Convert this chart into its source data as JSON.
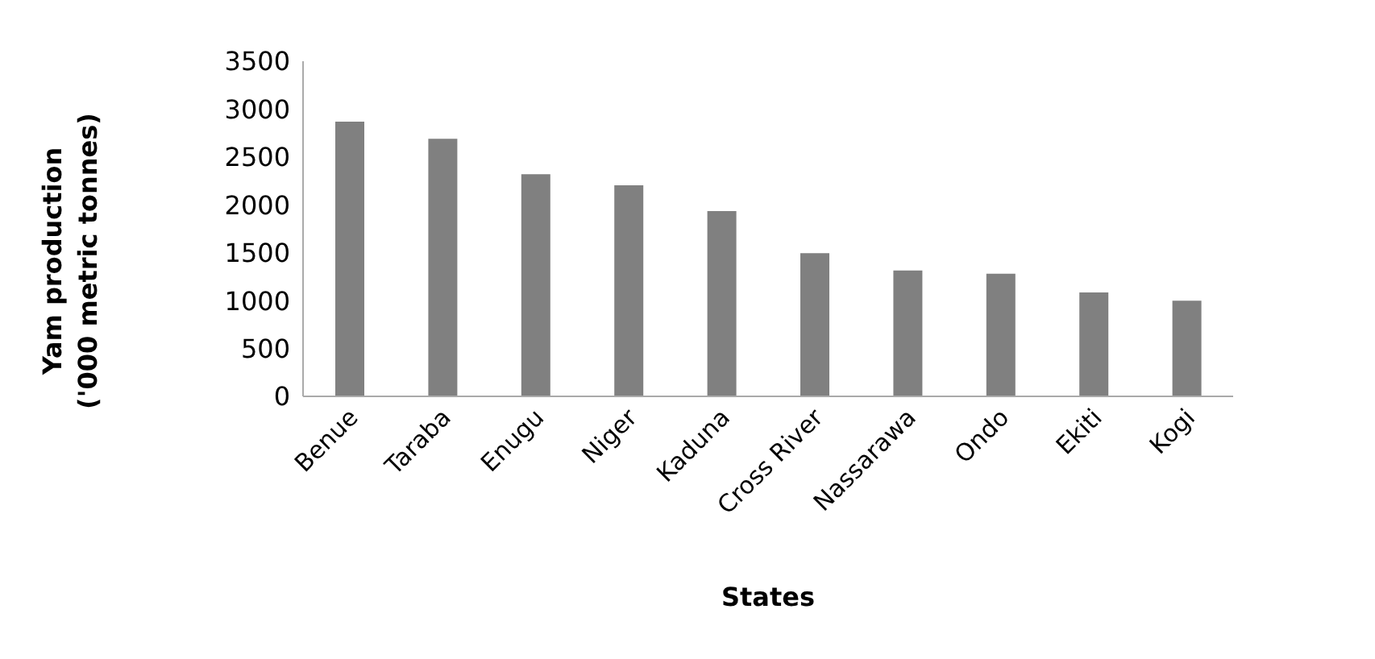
{
  "chart_data": {
    "type": "bar",
    "xlabel": "States",
    "ylabel": "Yam production ('000 metric tonnes)",
    "categories": [
      "Benue",
      "Taraba",
      "Enugu",
      "Niger",
      "Kaduna",
      "Cross River",
      "Nassarawa",
      "Ondo",
      "Ekiti",
      "Kogi"
    ],
    "values": [
      2870,
      2690,
      2320,
      2205,
      1935,
      1495,
      1315,
      1280,
      1085,
      1000
    ],
    "color": "#808080",
    "ylim": [
      0,
      3500
    ],
    "yticks": [
      0,
      500,
      1000,
      1500,
      2000,
      2500,
      3000,
      3500
    ],
    "grid": false,
    "legend": false
  }
}
